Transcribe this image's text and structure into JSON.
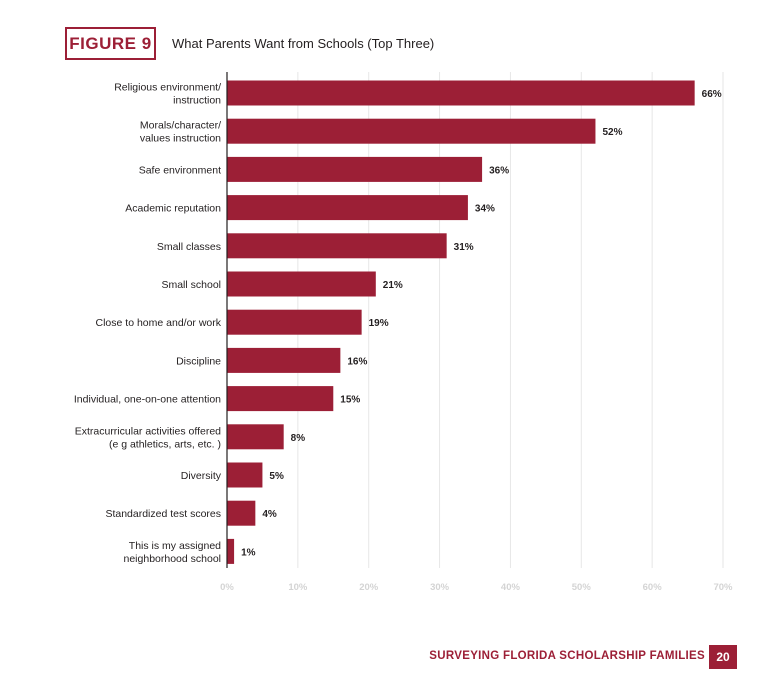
{
  "figure": {
    "badge": "FIGURE 9",
    "title": "What Parents Want from Schools (Top Three)"
  },
  "footer": {
    "title": "SURVEYING FLORIDA SCHOLARSHIP FAMILIES",
    "page": "20"
  },
  "colors": {
    "accent": "#9c1f36",
    "bar": "#9c1f36",
    "grid": "#e6e6e6",
    "tick_text": "#d4d4d4"
  },
  "chart_data": {
    "type": "bar",
    "orientation": "horizontal",
    "title": "What Parents Want from Schools (Top Three)",
    "categories": [
      [
        "Religious environment/",
        "instruction"
      ],
      [
        "Morals/character/",
        "values instruction"
      ],
      [
        "Safe environment"
      ],
      [
        "Academic reputation"
      ],
      [
        "Small classes"
      ],
      [
        "Small school"
      ],
      [
        "Close to home and/or work"
      ],
      [
        "Discipline"
      ],
      [
        "Individual, one-on-one attention"
      ],
      [
        "Extracurricular activities offered",
        "(e g  athletics, arts, etc. )"
      ],
      [
        "Diversity"
      ],
      [
        "Standardized test scores"
      ],
      [
        "This is my assigned",
        "neighborhood school"
      ]
    ],
    "values": [
      66,
      52,
      36,
      34,
      31,
      21,
      19,
      16,
      15,
      8,
      5,
      4,
      1
    ],
    "value_labels": [
      "66%",
      "52%",
      "36%",
      "34%",
      "31%",
      "21%",
      "19%",
      "16%",
      "15%",
      "8%",
      "5%",
      "4%",
      "1%"
    ],
    "xlim": [
      0,
      70
    ],
    "xticks": [
      0,
      10,
      20,
      30,
      40,
      50,
      60,
      70
    ],
    "xtick_labels": [
      "0%",
      "10%",
      "20%",
      "30%",
      "40%",
      "50%",
      "60%",
      "70%"
    ],
    "grid": true,
    "legend": false
  }
}
